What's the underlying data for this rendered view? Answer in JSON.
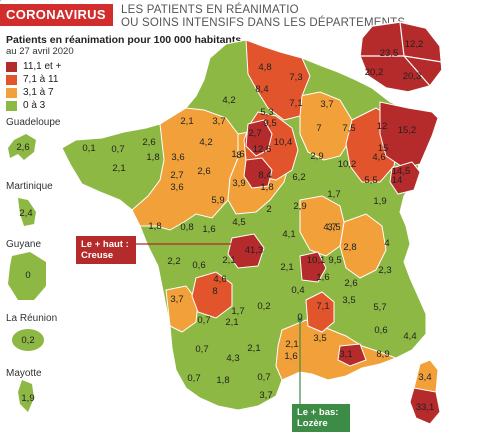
{
  "header": {
    "badge": "CORONAVIRUS",
    "headline_line1": "LES PATIENTS EN RÉANIMATIO",
    "headline_line2": "OU SOINS INTENSIFS DANS LES DÉPARTEMENTS"
  },
  "legend": {
    "title": "Patients en réanimation pour 100 000 habitants,",
    "date": "au 27 avril 2020",
    "items": [
      {
        "label": "11,1 et +",
        "color": "#b52a2a"
      },
      {
        "label": "7,1 à 11",
        "color": "#e2542b"
      },
      {
        "label": "3,1 à 7",
        "color": "#f2a13a"
      },
      {
        "label": "0 à 3",
        "color": "#8db843"
      }
    ]
  },
  "overseas": [
    {
      "name": "Guadeloupe",
      "value": "2,6"
    },
    {
      "name": "Martinique",
      "value": "2,4"
    },
    {
      "name": "Guyane",
      "value": "0"
    },
    {
      "name": "La Réunion",
      "value": "0,2"
    },
    {
      "name": "Mayotte",
      "value": "1,9"
    }
  ],
  "callouts": {
    "high_line1": "Le + haut :",
    "high_line2": "Creuse",
    "low_line1": "Le + bas:",
    "low_line2": "Lozère"
  },
  "idf_values": [
    "23,5",
    "12,2",
    "20,2",
    "20,3"
  ],
  "corsica_values": [
    "3,4",
    "33,1"
  ],
  "department_values": [
    "4,8",
    "7,3",
    "8,4",
    "4,2",
    "7,1",
    "3,7",
    "5,3",
    "12,6",
    "9,5",
    "2,1",
    "3,7",
    "2,7",
    "8",
    "1,6",
    "7",
    "7,5",
    "12",
    "15",
    "15,2",
    "0,1",
    "0,7",
    "2,6",
    "2,1",
    "1,8",
    "3,6",
    "4,2",
    "10,4",
    "2,9",
    "10,2",
    "4,6",
    "5,5",
    "14,5",
    "14",
    "2,7",
    "3,6",
    "2,6",
    "3,9",
    "6,2",
    "1,8",
    "8,4",
    "1,7",
    "5,9",
    "2",
    "2,9",
    "3,5",
    "1,9",
    "1,8",
    "0,8",
    "1,6",
    "4,5",
    "4,1",
    "4,7",
    "2,8",
    "4",
    "2,2",
    "0,6",
    "2,1",
    "41,3",
    "10,1",
    "9,5",
    "2,3",
    "3,7",
    "4,6",
    "2,1",
    "1,6",
    "2,6",
    "8",
    "1,7",
    "0,4",
    "7,1",
    "3,5",
    "0,7",
    "2,1",
    "0,2",
    "0",
    "5,7",
    "0,6",
    "4,4",
    "0,7",
    "4,3",
    "2,1",
    "3,5",
    "2,1",
    "0,7",
    "1,8",
    "0,7",
    "1,6",
    "3,1",
    "8,9",
    "3,7",
    "2,1"
  ]
}
